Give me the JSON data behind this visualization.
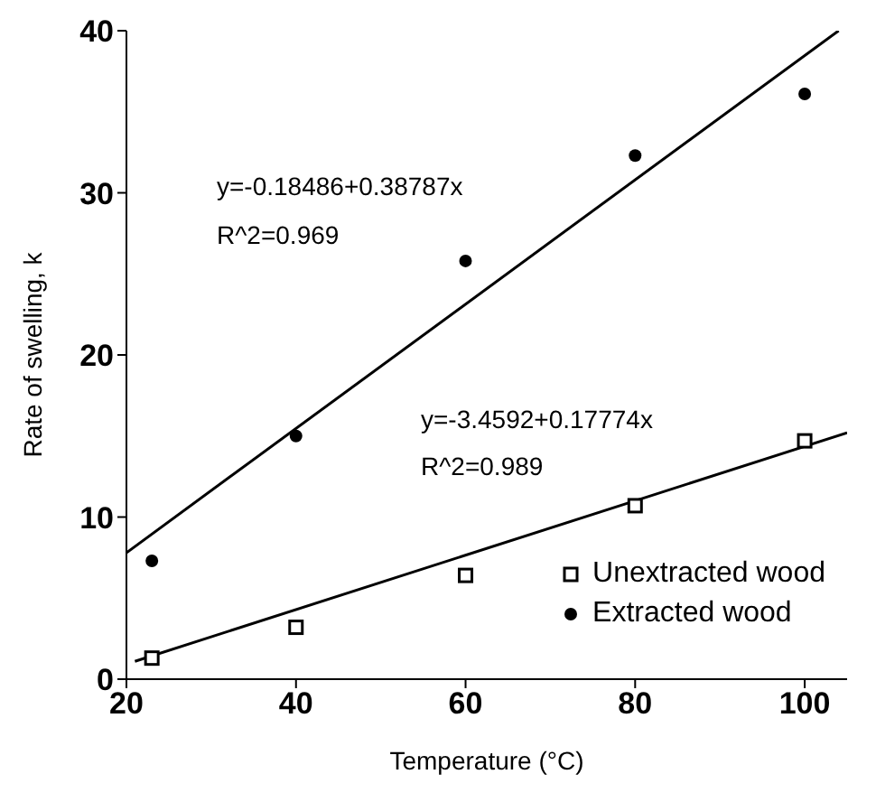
{
  "chart_data": {
    "type": "scatter",
    "xlabel": "Temperature (°C)",
    "ylabel": "Rate of swelling, k",
    "xlim": [
      20,
      105
    ],
    "xticks": [
      20,
      40,
      60,
      80,
      100
    ],
    "ylim": [
      0,
      40
    ],
    "yticks": [
      0,
      10,
      20,
      30,
      40
    ],
    "grid": false,
    "legend": "bottom right",
    "series": [
      {
        "name": "Unextracted wood",
        "color": "#000000",
        "marker": "square",
        "x": [
          23,
          40,
          60,
          80,
          100
        ],
        "values": [
          1.3,
          3.2,
          6.4,
          10.7,
          14.7
        ]
      },
      {
        "name": "Extracted wood",
        "color": "#000000",
        "marker": "circle",
        "x": [
          23,
          40,
          60,
          80,
          100
        ],
        "values": [
          7.3,
          15,
          25.8,
          32.3,
          36.1
        ]
      },
      {
        "type": "line",
        "color": "#000000",
        "marker": "none",
        "x": [
          21,
          105
        ],
        "values": [
          1.1,
          15.2
        ]
      },
      {
        "type": "line",
        "color": "#000000",
        "marker": "none",
        "x": [
          20,
          104
        ],
        "values": [
          7.8,
          40
        ]
      }
    ],
    "annotations": [
      "y=-0.18486+0.38787x",
      "R^2=0.969",
      "y=-3.4592+0.17774x",
      "R^2=0.989"
    ]
  }
}
